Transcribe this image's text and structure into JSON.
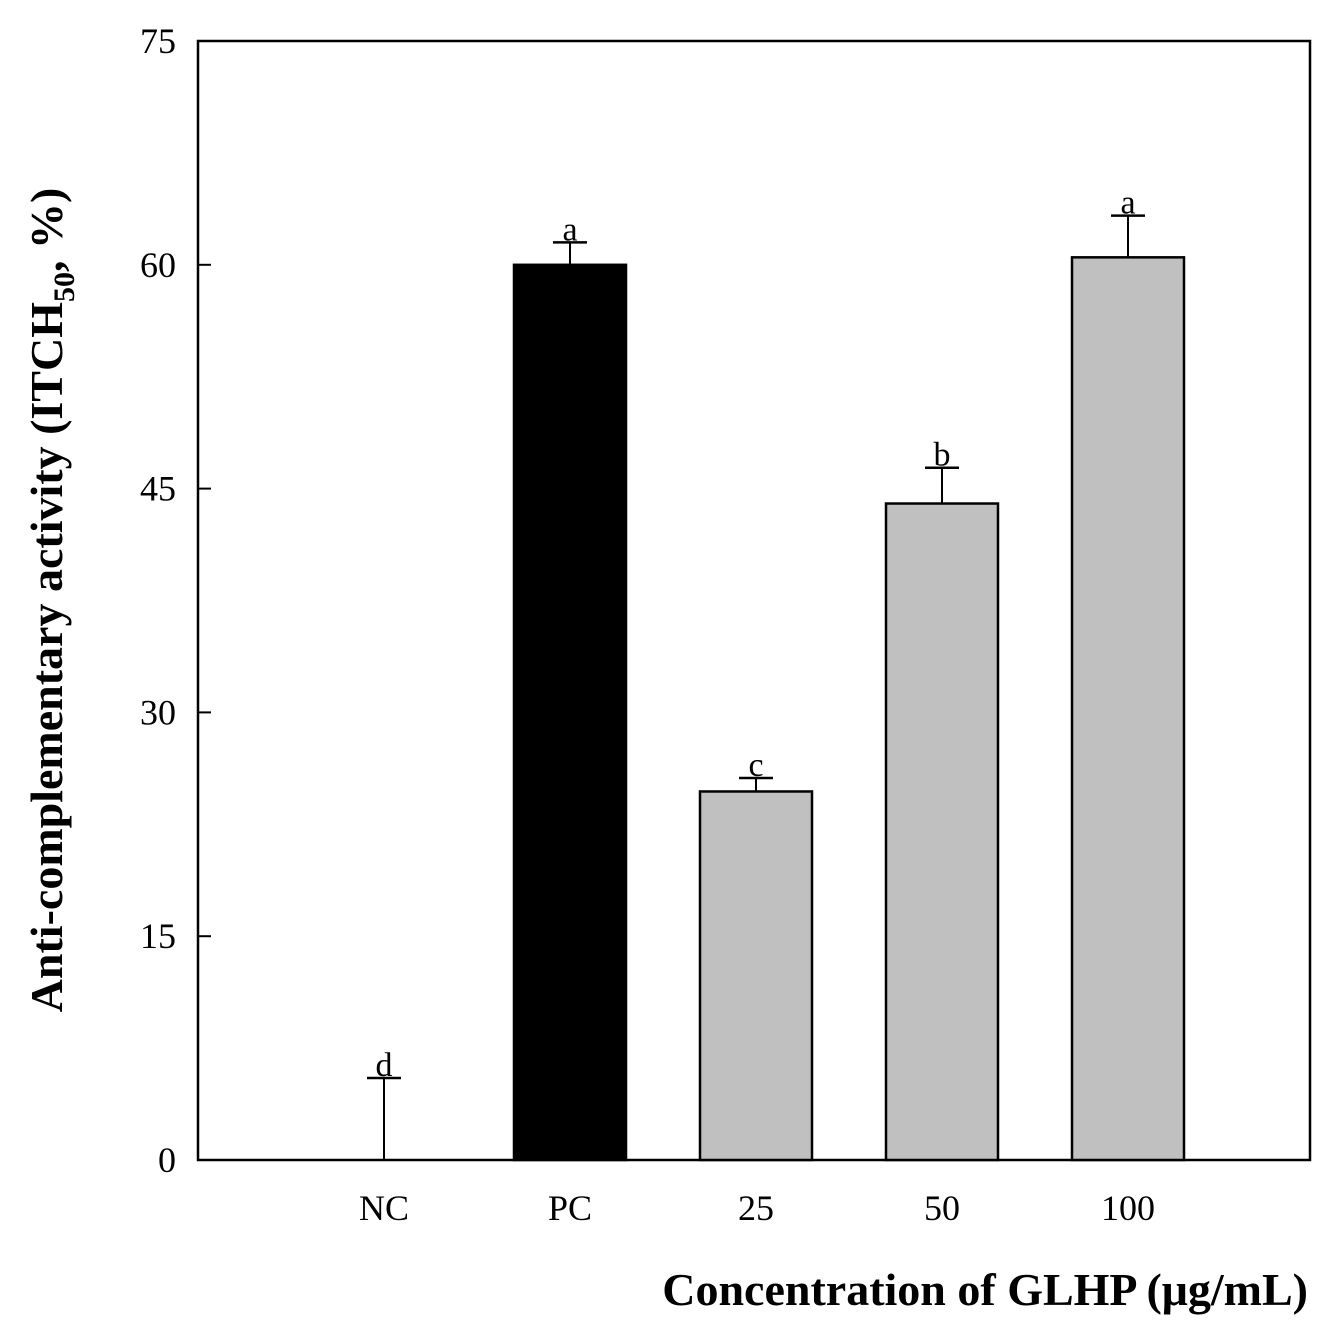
{
  "chart_data": {
    "type": "bar",
    "title": "",
    "xlabel": "Concentration of GLHP (μg/mL)",
    "ylabel": {
      "prefix": "Anti-complementary activity (ITCH",
      "subscript": "50",
      "suffix": ", %)"
    },
    "categories": [
      "NC",
      "PC",
      "25",
      "50",
      "100"
    ],
    "values": [
      0,
      60.0,
      24.7,
      44.0,
      60.5
    ],
    "errors": [
      5.5,
      1.5,
      0.9,
      2.4,
      2.8
    ],
    "significance": [
      "d",
      "a",
      "c",
      "b",
      "a"
    ],
    "colors": [
      "#c0c0c0",
      "#000000",
      "#c0c0c0",
      "#c0c0c0",
      "#c0c0c0"
    ],
    "ylim": [
      0,
      75
    ],
    "yticks": [
      0,
      15,
      30,
      45,
      60,
      75
    ],
    "grid": false,
    "legend": "none"
  }
}
